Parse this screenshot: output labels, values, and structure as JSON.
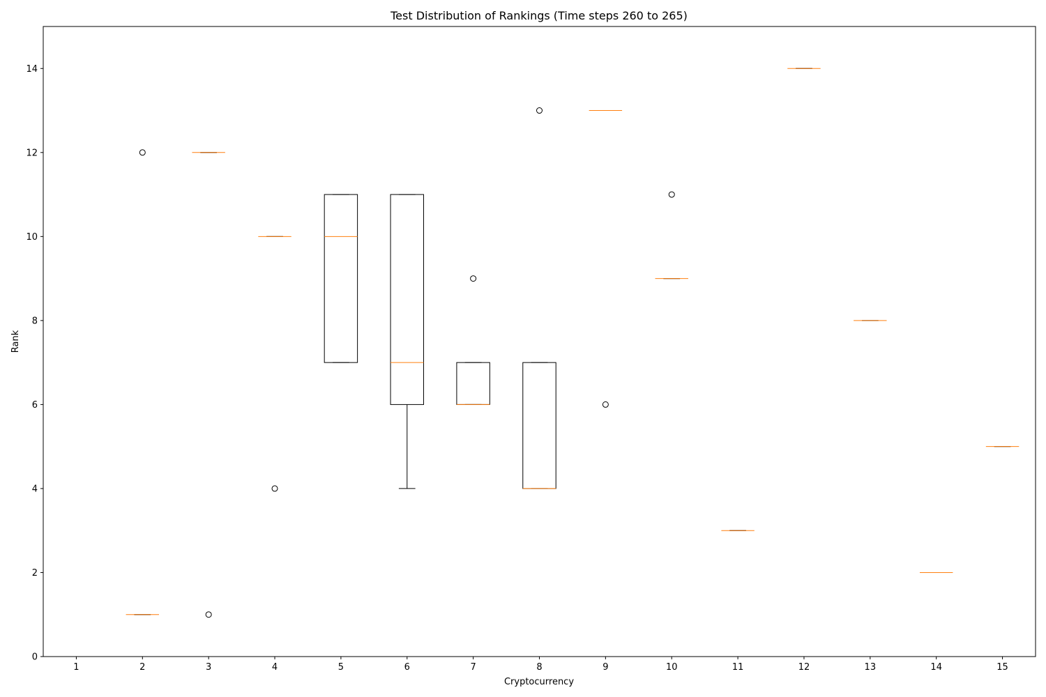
{
  "chart_data": {
    "type": "boxplot",
    "title": "Test Distribution of Rankings (Time steps 260 to 265)",
    "xlabel": "Cryptocurrency",
    "ylabel": "Rank",
    "categories": [
      "1",
      "2",
      "3",
      "4",
      "5",
      "6",
      "7",
      "8",
      "9",
      "10",
      "11",
      "12",
      "13",
      "14",
      "15"
    ],
    "ylim": [
      0,
      15
    ],
    "yticks": [
      0,
      2,
      4,
      6,
      8,
      10,
      12,
      14
    ],
    "grid": false,
    "colors": {
      "box": "#000000",
      "median": "#ff7f0e",
      "outlier": "#000000"
    },
    "boxes": [
      {
        "category": "1",
        "whisker_low": 0,
        "q1": 0,
        "median": 0,
        "q3": 0,
        "whisker_high": 0,
        "outliers": []
      },
      {
        "category": "2",
        "whisker_low": 1,
        "q1": 1,
        "median": 1,
        "q3": 1,
        "whisker_high": 1,
        "outliers": [
          12
        ]
      },
      {
        "category": "3",
        "whisker_low": 12,
        "q1": 12,
        "median": 12,
        "q3": 12,
        "whisker_high": 12,
        "outliers": [
          1
        ]
      },
      {
        "category": "4",
        "whisker_low": 10,
        "q1": 10,
        "median": 10,
        "q3": 10,
        "whisker_high": 10,
        "outliers": [
          4
        ]
      },
      {
        "category": "5",
        "whisker_low": 7,
        "q1": 7,
        "median": 10,
        "q3": 11,
        "whisker_high": 11,
        "outliers": []
      },
      {
        "category": "6",
        "whisker_low": 4,
        "q1": 6,
        "median": 7,
        "q3": 11,
        "whisker_high": 11,
        "outliers": []
      },
      {
        "category": "7",
        "whisker_low": 6,
        "q1": 6,
        "median": 6,
        "q3": 7,
        "whisker_high": 7,
        "outliers": [
          9
        ]
      },
      {
        "category": "8",
        "whisker_low": 4,
        "q1": 4,
        "median": 4,
        "q3": 7,
        "whisker_high": 7,
        "outliers": [
          13
        ]
      },
      {
        "category": "9",
        "whisker_low": 13,
        "q1": 13,
        "median": 13,
        "q3": 13,
        "whisker_high": 13,
        "outliers": [
          6
        ]
      },
      {
        "category": "10",
        "whisker_low": 9,
        "q1": 9,
        "median": 9,
        "q3": 9,
        "whisker_high": 9,
        "outliers": [
          11
        ]
      },
      {
        "category": "11",
        "whisker_low": 3,
        "q1": 3,
        "median": 3,
        "q3": 3,
        "whisker_high": 3,
        "outliers": []
      },
      {
        "category": "12",
        "whisker_low": 14,
        "q1": 14,
        "median": 14,
        "q3": 14,
        "whisker_high": 14,
        "outliers": []
      },
      {
        "category": "13",
        "whisker_low": 8,
        "q1": 8,
        "median": 8,
        "q3": 8,
        "whisker_high": 8,
        "outliers": []
      },
      {
        "category": "14",
        "whisker_low": 2,
        "q1": 2,
        "median": 2,
        "q3": 2,
        "whisker_high": 2,
        "outliers": []
      },
      {
        "category": "15",
        "whisker_low": 5,
        "q1": 5,
        "median": 5,
        "q3": 5,
        "whisker_high": 5,
        "outliers": []
      }
    ]
  }
}
